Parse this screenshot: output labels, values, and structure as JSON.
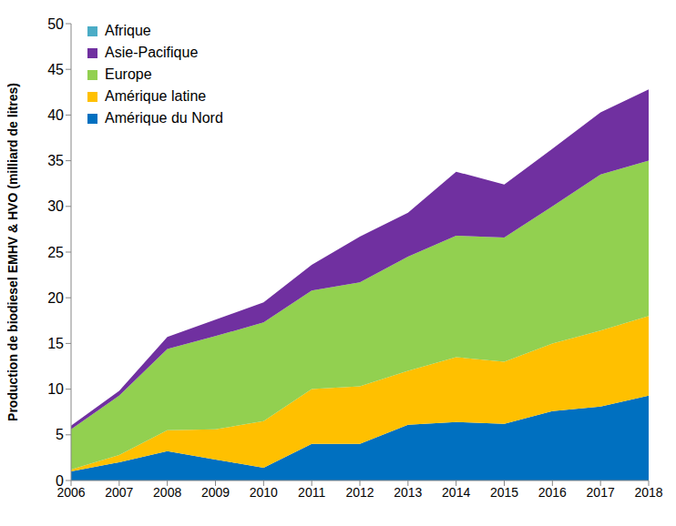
{
  "chart_data": {
    "type": "area",
    "stacked": true,
    "ylabel": "Production de biodiesel EMHV & HVO (milliard de litres)",
    "categories": [
      "2006",
      "2007",
      "2008",
      "2009",
      "2010",
      "2011",
      "2012",
      "2013",
      "2014",
      "2015",
      "2016",
      "2017",
      "2018"
    ],
    "series": [
      {
        "name": "Afrique",
        "color": "#4bacc6",
        "values": [
          0,
          0,
          0,
          0,
          0,
          0,
          0,
          0,
          0,
          0,
          0,
          0,
          0
        ]
      },
      {
        "name": "Asie-Pacifique",
        "color": "#7030a0",
        "values": [
          0.4,
          0.5,
          1.3,
          1.8,
          2.2,
          2.8,
          5.0,
          4.8,
          7.0,
          5.8,
          6.3,
          6.8,
          7.8
        ]
      },
      {
        "name": "Europe",
        "color": "#92d050",
        "values": [
          4.4,
          6.5,
          8.9,
          10.2,
          10.8,
          10.8,
          11.4,
          12.5,
          13.3,
          13.6,
          15.0,
          17.1,
          17.0
        ]
      },
      {
        "name": "Amérique latine",
        "color": "#ffc000",
        "values": [
          0.2,
          0.8,
          2.3,
          3.3,
          5.1,
          6.0,
          6.3,
          5.9,
          7.1,
          6.8,
          7.4,
          8.3,
          8.7
        ]
      },
      {
        "name": "Amérique du Nord",
        "color": "#0070c0",
        "values": [
          1.0,
          2.0,
          3.2,
          2.3,
          1.4,
          4.0,
          4.0,
          6.1,
          6.4,
          6.2,
          7.6,
          8.1,
          9.3
        ]
      }
    ],
    "ylim": [
      0,
      50
    ],
    "yticks": [
      0,
      5,
      10,
      15,
      20,
      25,
      30,
      35,
      40,
      45,
      50
    ],
    "legend": "upper left",
    "grid": false
  }
}
